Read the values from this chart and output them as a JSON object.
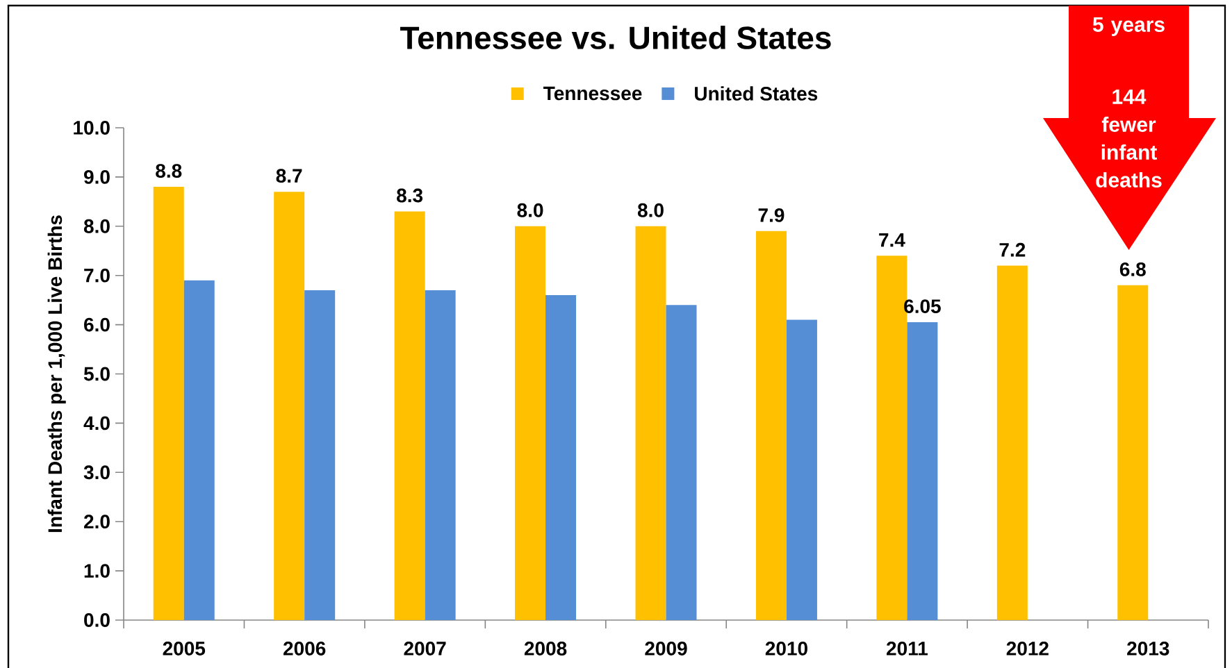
{
  "chart_data": {
    "type": "bar",
    "title": "Tennessee vs. United States",
    "ylabel": "Infant Deaths per 1,000 Live Births",
    "categories": [
      "2005",
      "2006",
      "2007",
      "2008",
      "2009",
      "2010",
      "2011",
      "2012",
      "2013"
    ],
    "series": [
      {
        "name": "Tennessee",
        "color": "#ffc000",
        "values": [
          8.8,
          8.7,
          8.3,
          8.0,
          8.0,
          7.9,
          7.4,
          7.2,
          6.8
        ],
        "value_labels": [
          "8.8",
          "8.7",
          "8.3",
          "8.0",
          "8.0",
          "7.9",
          "7.4",
          "7.2",
          "6.8"
        ]
      },
      {
        "name": "United States",
        "color": "#558ed5",
        "values": [
          6.9,
          6.7,
          6.7,
          6.6,
          6.4,
          6.1,
          6.05,
          null,
          null
        ],
        "value_labels": [
          null,
          null,
          null,
          null,
          null,
          null,
          "6.05",
          null,
          null
        ]
      }
    ],
    "ylim": [
      0,
      10
    ],
    "yticks": [
      {
        "value": 0,
        "label": "0.0"
      },
      {
        "value": 1,
        "label": "1.0"
      },
      {
        "value": 2,
        "label": "2.0"
      },
      {
        "value": 3,
        "label": "3.0"
      },
      {
        "value": 4,
        "label": "4.0"
      },
      {
        "value": 5,
        "label": "5.0"
      },
      {
        "value": 6,
        "label": "6.0"
      },
      {
        "value": 7,
        "label": "7.0"
      },
      {
        "value": 8,
        "label": "8.0"
      },
      {
        "value": 9,
        "label": "9.0"
      },
      {
        "value": 10,
        "label": "10.0"
      }
    ],
    "legend": "top",
    "annotations": [
      "5 years",
      "144 fewer infant deaths"
    ]
  }
}
